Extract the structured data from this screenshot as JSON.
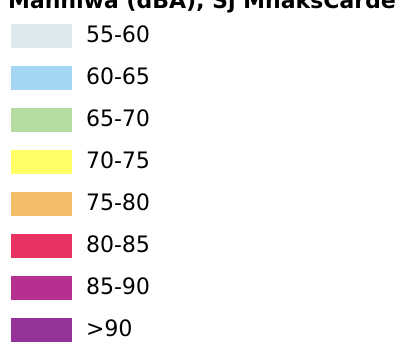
{
  "legend": {
    "title": "Manniwa (dBA), Sj MnaksCarde",
    "items": [
      {
        "label": "55-60",
        "color": "#dce9ef"
      },
      {
        "label": "60-65",
        "color": "#a3d6f5"
      },
      {
        "label": "65-70",
        "color": "#b4dba0"
      },
      {
        "label": "70-75",
        "color": "#ffff66"
      },
      {
        "label": "75-80",
        "color": "#f3bd6a"
      },
      {
        "label": "80-85",
        "color": "#e83262"
      },
      {
        "label": "85-90",
        "color": "#b6318f"
      },
      {
        "label": ">90",
        "color": "#953398"
      }
    ]
  }
}
